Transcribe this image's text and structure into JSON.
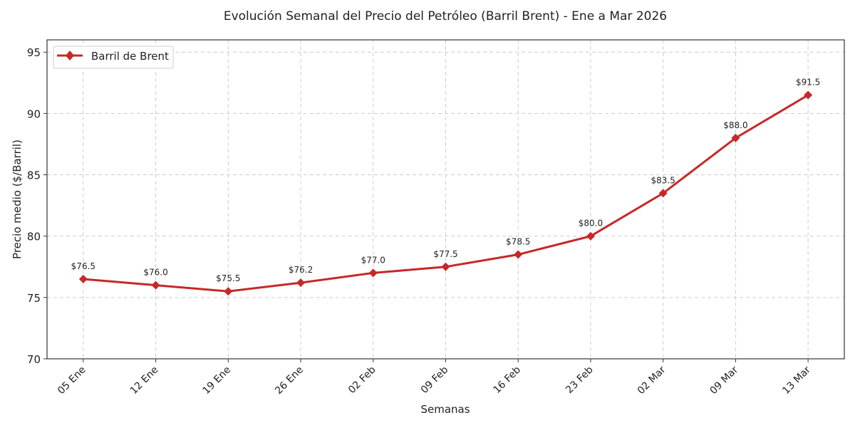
{
  "chart_data": {
    "type": "line",
    "title": "Evolución Semanal del Precio del Petróleo (Barril Brent) - Ene a Mar 2026",
    "xlabel": "Semanas",
    "ylabel": "Precio medio ($/Barril)",
    "categories": [
      "05 Ene",
      "12 Ene",
      "19 Ene",
      "26 Ene",
      "02 Feb",
      "09 Feb",
      "16 Feb",
      "23 Feb",
      "02 Mar",
      "09 Mar",
      "13 Mar"
    ],
    "series": [
      {
        "name": "Barril de Brent",
        "color": "#c62828",
        "values": [
          76.5,
          76.0,
          75.5,
          76.2,
          77.0,
          77.5,
          78.5,
          80.0,
          83.5,
          88.0,
          91.5
        ],
        "labels": [
          "$76.5",
          "$76.0",
          "$75.5",
          "$76.2",
          "$77.0",
          "$77.5",
          "$78.5",
          "$80.0",
          "$83.5",
          "$88.0",
          "$91.5"
        ]
      }
    ],
    "ylim": [
      70,
      96
    ],
    "yticks": [
      70,
      75,
      80,
      85,
      90,
      95
    ],
    "grid": true,
    "legend_position": "top-left"
  }
}
